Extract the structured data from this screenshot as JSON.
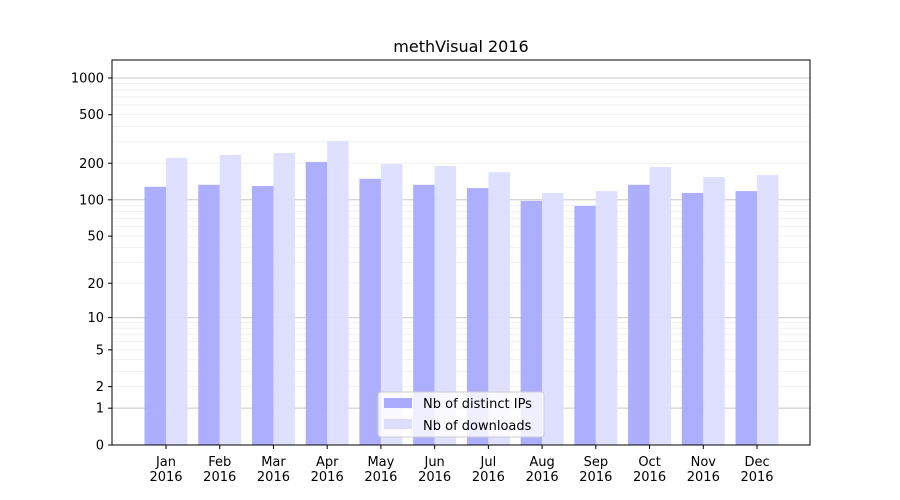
{
  "chart_data": {
    "type": "bar",
    "title": "methVisual 2016",
    "xlabel": "",
    "ylabel": "",
    "yscale": "log(y+1)",
    "ylim": [
      0,
      1300
    ],
    "grid": true,
    "legend_placement": "lower-center",
    "categories": [
      "Jan\n2016",
      "Feb\n2016",
      "Mar\n2016",
      "Apr\n2016",
      "May\n2016",
      "Jun\n2016",
      "Jul\n2016",
      "Aug\n2016",
      "Sep\n2016",
      "Oct\n2016",
      "Nov\n2016",
      "Dec\n2016"
    ],
    "yticks": [
      0,
      1,
      2,
      5,
      10,
      20,
      50,
      100,
      200,
      500,
      1000
    ],
    "ytick_labels": [
      "0",
      "1",
      "2",
      "5",
      "10",
      "20",
      "50",
      "100",
      "200",
      "500",
      "1000"
    ],
    "series": [
      {
        "name": "Nb of distinct IPs",
        "color": "#aaaaff",
        "values": [
          128,
          133,
          130,
          205,
          149,
          133,
          125,
          98,
          89,
          133,
          114,
          118
        ]
      },
      {
        "name": "Nb of downloads",
        "color": "#ddddff",
        "values": [
          221,
          234,
          243,
          305,
          197,
          190,
          169,
          114,
          118,
          186,
          154,
          160
        ]
      }
    ]
  }
}
